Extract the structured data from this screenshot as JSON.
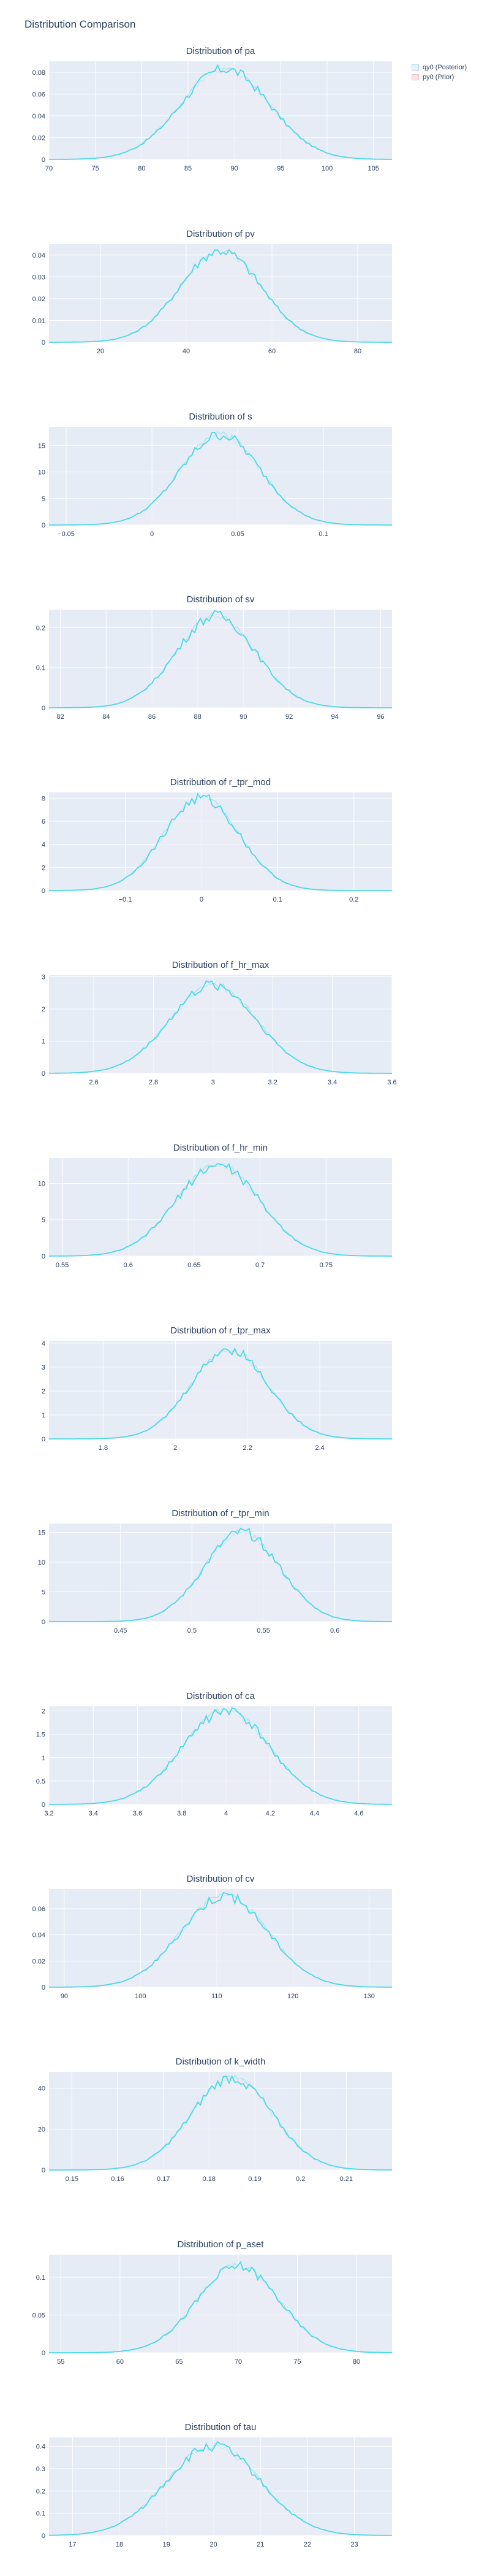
{
  "page": {
    "title": "Distribution Comparison"
  },
  "legend": {
    "posterior_label": "qy0 (Posterior)",
    "prior_label": "py0 (Prior)",
    "posterior_color": "#e6f4fa",
    "prior_color": "#fde2e4"
  },
  "colors": {
    "posterior_line": "#4dd8e6",
    "prior_line": "#99e4ec",
    "plot_bg": "#e5ecf6",
    "grid": "#ffffff"
  },
  "chart_data": [
    {
      "type": "area",
      "title": "Distribution of pa",
      "xlim": [
        70,
        107
      ],
      "ylim": [
        0,
        0.09
      ],
      "xticks": [
        70,
        75,
        80,
        85,
        90,
        95,
        100,
        105
      ],
      "xtick_labels": [
        "70",
        "75",
        "80",
        "85",
        "90",
        "95",
        "100",
        "105"
      ],
      "yticks": [
        0,
        0.02,
        0.04,
        0.06,
        0.08
      ],
      "ytick_labels": [
        "0",
        "0.02",
        "0.04",
        "0.06",
        "0.08"
      ],
      "peak_x": 89,
      "peak_y": 0.083
    },
    {
      "type": "area",
      "title": "Distribution of pv",
      "xlim": [
        8,
        88
      ],
      "ylim": [
        0,
        0.045
      ],
      "xticks": [
        20,
        40,
        60,
        80
      ],
      "xtick_labels": [
        "20",
        "40",
        "60",
        "80"
      ],
      "yticks": [
        0,
        0.01,
        0.02,
        0.03,
        0.04
      ],
      "ytick_labels": [
        "0",
        "0.01",
        "0.02",
        "0.03",
        "0.04"
      ],
      "peak_x": 48,
      "peak_y": 0.042
    },
    {
      "type": "area",
      "title": "Distribution of s",
      "xlim": [
        -0.06,
        0.14
      ],
      "ylim": [
        0,
        18.5
      ],
      "xticks": [
        -0.05,
        0,
        0.05,
        0.1
      ],
      "xtick_labels": [
        "−0.05",
        "0",
        "0.05",
        "0.1"
      ],
      "yticks": [
        0,
        5,
        10,
        15
      ],
      "ytick_labels": [
        "0",
        "5",
        "10",
        "15"
      ],
      "peak_x": 0.04,
      "peak_y": 17
    },
    {
      "type": "area",
      "title": "Distribution of sv",
      "xlim": [
        81.5,
        96.5
      ],
      "ylim": [
        0,
        0.245
      ],
      "xticks": [
        82,
        84,
        86,
        88,
        90,
        92,
        94,
        96
      ],
      "xtick_labels": [
        "82",
        "84",
        "86",
        "88",
        "90",
        "92",
        "94",
        "96"
      ],
      "yticks": [
        0,
        0.1,
        0.2
      ],
      "ytick_labels": [
        "0",
        "0.1",
        "0.2"
      ],
      "peak_x": 88.8,
      "peak_y": 0.23
    },
    {
      "type": "area",
      "title": "Distribution of r_tpr_mod",
      "xlim": [
        -0.2,
        0.25
      ],
      "ylim": [
        0,
        8.5
      ],
      "xticks": [
        -0.1,
        0,
        0.1,
        0.2
      ],
      "xtick_labels": [
        "−0.1",
        "0",
        "0.1",
        "0.2"
      ],
      "yticks": [
        0,
        2,
        4,
        6,
        8
      ],
      "ytick_labels": [
        "0",
        "2",
        "4",
        "6",
        "8"
      ],
      "peak_x": 0,
      "peak_y": 8
    },
    {
      "type": "area",
      "title": "Distribution of f_hr_max",
      "xlim": [
        2.45,
        3.6
      ],
      "ylim": [
        0,
        3.05
      ],
      "xticks": [
        2.6,
        2.8,
        3,
        3.2,
        3.4,
        3.6
      ],
      "xtick_labels": [
        "2.6",
        "2.8",
        "3",
        "3.2",
        "3.4",
        "3.6"
      ],
      "yticks": [
        0,
        1,
        2,
        3
      ],
      "ytick_labels": [
        "0",
        "1",
        "2",
        "3"
      ],
      "peak_x": 3.0,
      "peak_y": 2.75
    },
    {
      "type": "area",
      "title": "Distribution of f_hr_min",
      "xlim": [
        0.54,
        0.8
      ],
      "ylim": [
        0,
        13.5
      ],
      "xticks": [
        0.55,
        0.6,
        0.65,
        0.7,
        0.75
      ],
      "xtick_labels": [
        "0.55",
        "0.6",
        "0.65",
        "0.7",
        "0.75"
      ],
      "yticks": [
        0,
        5,
        10
      ],
      "ytick_labels": [
        "0",
        "5",
        "10"
      ],
      "peak_x": 0.668,
      "peak_y": 12.5
    },
    {
      "type": "area",
      "title": "Distribution of r_tpr_max",
      "xlim": [
        1.65,
        2.6
      ],
      "ylim": [
        0,
        4.1
      ],
      "xticks": [
        1.8,
        2,
        2.2,
        2.4
      ],
      "xtick_labels": [
        "1.8",
        "2",
        "2.2",
        "2.4"
      ],
      "yticks": [
        0,
        1,
        2,
        3,
        4
      ],
      "ytick_labels": [
        "0",
        "1",
        "2",
        "3",
        "4"
      ],
      "peak_x": 2.15,
      "peak_y": 3.75
    },
    {
      "type": "area",
      "title": "Distribution of r_tpr_min",
      "xlim": [
        0.4,
        0.64
      ],
      "ylim": [
        0,
        16.5
      ],
      "xticks": [
        0.45,
        0.5,
        0.55,
        0.6
      ],
      "xtick_labels": [
        "0.45",
        "0.5",
        "0.55",
        "0.6"
      ],
      "yticks": [
        0,
        5,
        10,
        15
      ],
      "ytick_labels": [
        "0",
        "5",
        "10",
        "15"
      ],
      "peak_x": 0.535,
      "peak_y": 15
    },
    {
      "type": "area",
      "title": "Distribution of ca",
      "xlim": [
        3.2,
        4.75
      ],
      "ylim": [
        0,
        2.1
      ],
      "xticks": [
        3.2,
        3.4,
        3.6,
        3.8,
        4,
        4.2,
        4.4,
        4.6
      ],
      "xtick_labels": [
        "3.2",
        "3.4",
        "3.6",
        "3.8",
        "4",
        "4.2",
        "4.4",
        "4.6"
      ],
      "yticks": [
        0,
        0.5,
        1,
        1.5,
        2
      ],
      "ytick_labels": [
        "0",
        "0.5",
        "1",
        "1.5",
        "2"
      ],
      "peak_x": 4.0,
      "peak_y": 2.0
    },
    {
      "type": "area",
      "title": "Distribution of cv",
      "xlim": [
        88,
        133
      ],
      "ylim": [
        0,
        0.075
      ],
      "xticks": [
        90,
        100,
        110,
        120,
        130
      ],
      "xtick_labels": [
        "90",
        "100",
        "110",
        "120",
        "130"
      ],
      "yticks": [
        0,
        0.02,
        0.04,
        0.06
      ],
      "ytick_labels": [
        "0",
        "0.02",
        "0.04",
        "0.06"
      ],
      "peak_x": 111,
      "peak_y": 0.07
    },
    {
      "type": "area",
      "title": "Distribution of k_width",
      "xlim": [
        0.145,
        0.22
      ],
      "ylim": [
        0,
        48
      ],
      "xticks": [
        0.15,
        0.16,
        0.17,
        0.18,
        0.19,
        0.2,
        0.21
      ],
      "xtick_labels": [
        "0.15",
        "0.16",
        "0.17",
        "0.18",
        "0.19",
        "0.2",
        "0.21"
      ],
      "yticks": [
        0,
        20,
        40
      ],
      "ytick_labels": [
        "0",
        "20",
        "40"
      ],
      "peak_x": 0.185,
      "peak_y": 45
    },
    {
      "type": "area",
      "title": "Distribution of p_aset",
      "xlim": [
        54,
        83
      ],
      "ylim": [
        0,
        0.13
      ],
      "xticks": [
        55,
        60,
        65,
        70,
        75,
        80
      ],
      "xtick_labels": [
        "55",
        "60",
        "65",
        "70",
        "75",
        "80"
      ],
      "yticks": [
        0,
        0.05,
        0.1
      ],
      "ytick_labels": [
        "0",
        "0.05",
        "0.1"
      ],
      "peak_x": 70,
      "peak_y": 0.115
    },
    {
      "type": "area",
      "title": "Distribution of tau",
      "xlim": [
        16.5,
        23.8
      ],
      "ylim": [
        0,
        0.44
      ],
      "xticks": [
        17,
        18,
        19,
        20,
        21,
        22,
        23
      ],
      "xtick_labels": [
        "17",
        "18",
        "19",
        "20",
        "21",
        "22",
        "23"
      ],
      "yticks": [
        0,
        0.1,
        0.2,
        0.3,
        0.4
      ],
      "ytick_labels": [
        "0",
        "0.1",
        "0.2",
        "0.3",
        "0.4"
      ],
      "peak_x": 20,
      "peak_y": 0.4
    }
  ]
}
